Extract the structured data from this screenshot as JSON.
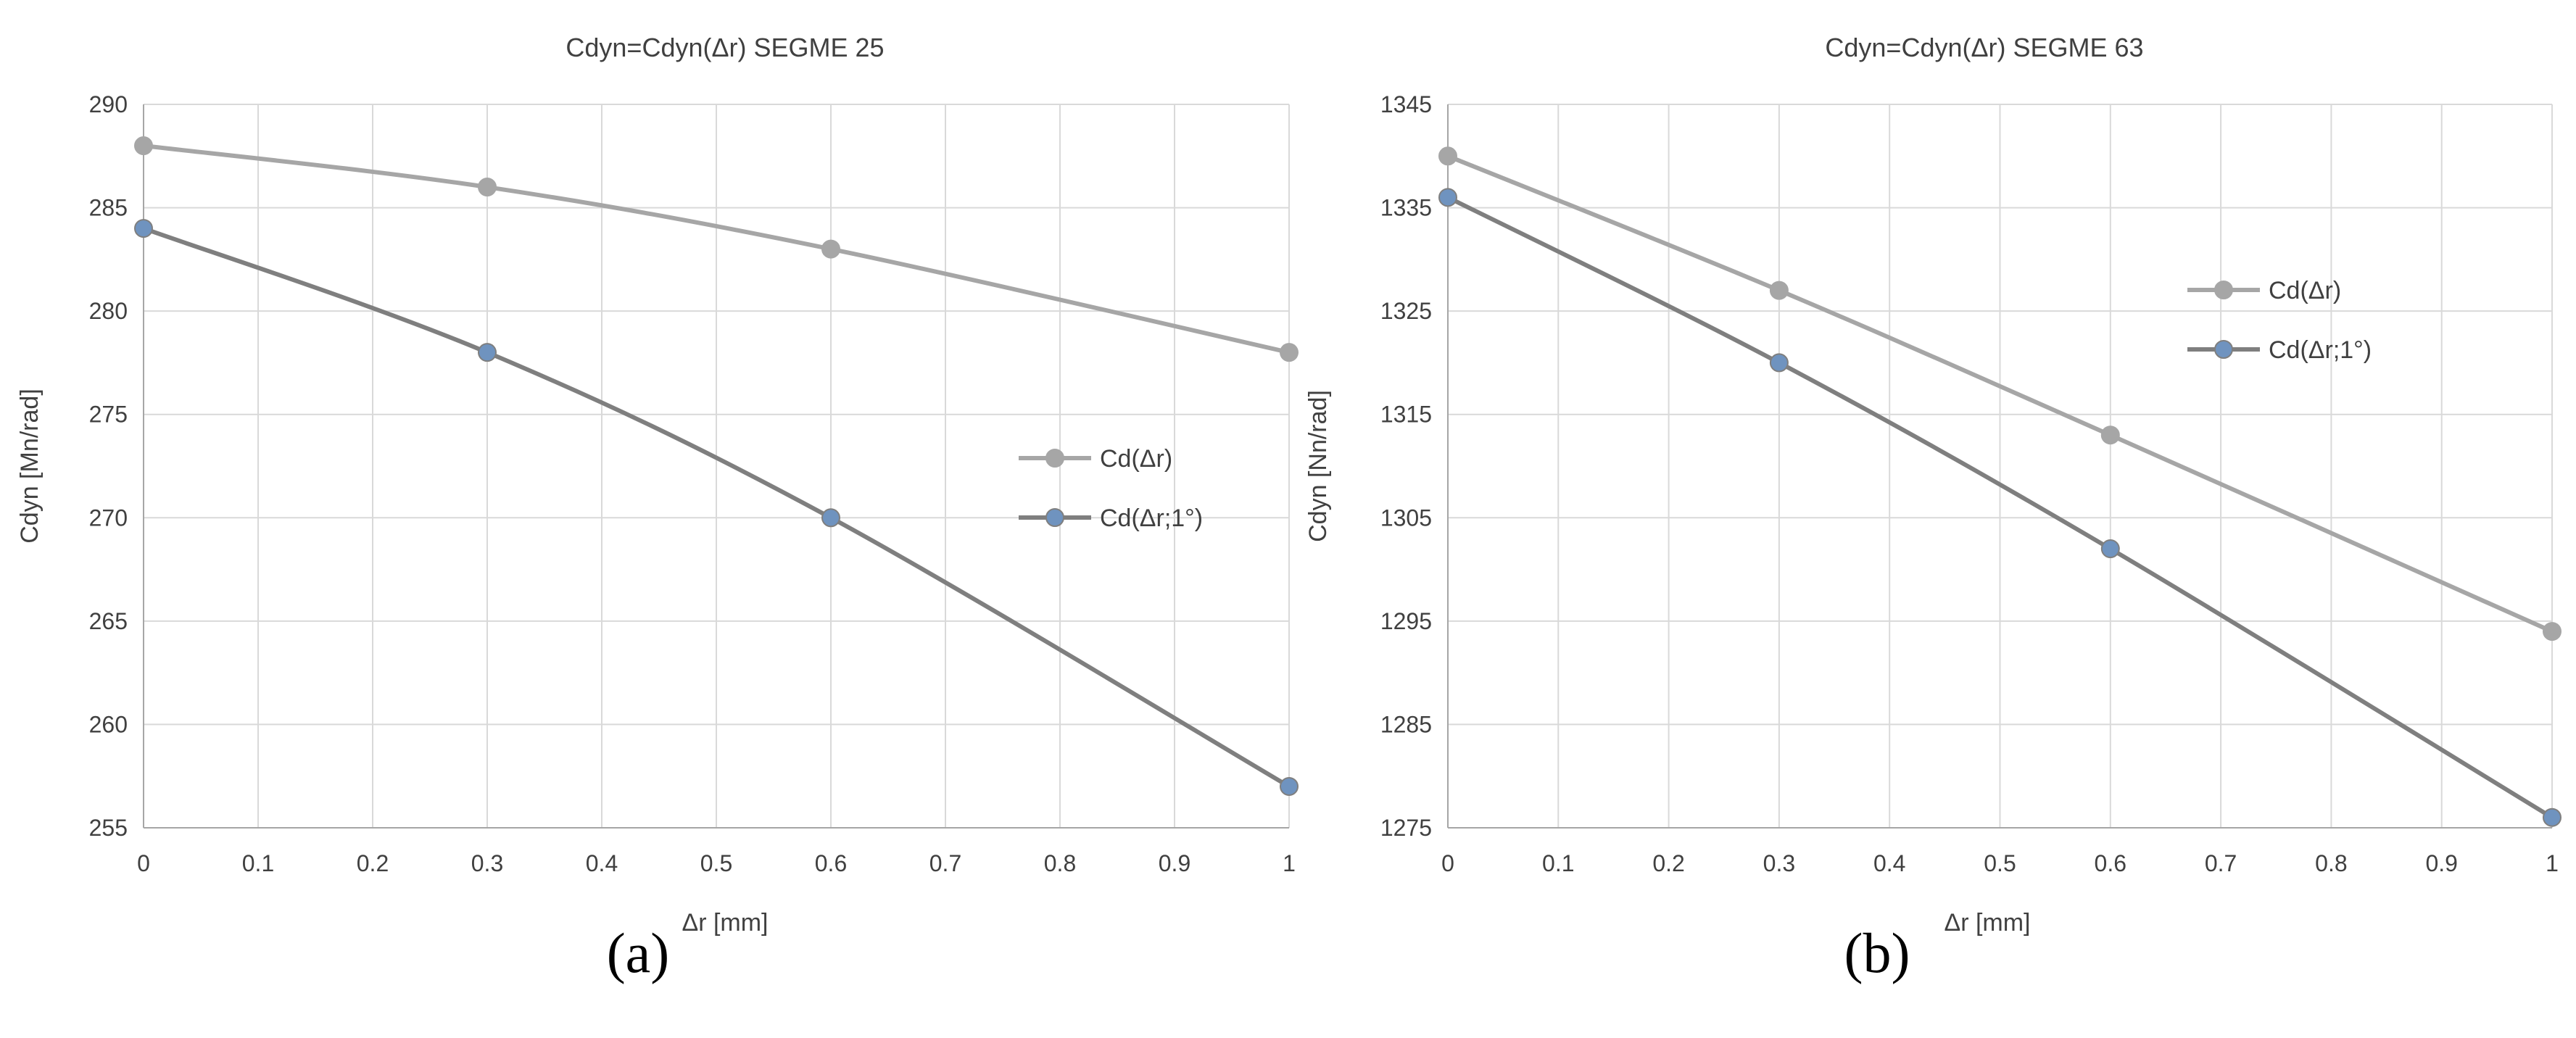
{
  "colors": {
    "series1_line": "#a6a6a6",
    "series1_marker": "#a6a6a6",
    "series2_line": "#7f7f7f",
    "series2_marker": "#6f93bf",
    "grid": "#d9d9d9",
    "axis": "#a6a6a6",
    "text": "#404040"
  },
  "chart_data": [
    {
      "panel_label": "(a)",
      "type": "line",
      "title": "Cdyn=Cdyn(Δr)  SEGME  25",
      "xlabel": "Δr [mm]",
      "ylabel": "Cdyn [Mn/rad]",
      "x": [
        0,
        0.3,
        0.6,
        1
      ],
      "xlim": [
        0,
        1
      ],
      "ylim": [
        255,
        290
      ],
      "xticks": [
        0,
        0.1,
        0.2,
        0.3,
        0.4,
        0.5,
        0.6,
        0.7,
        0.8,
        0.9,
        1
      ],
      "xtick_labels": [
        "0",
        "0.1",
        "0.2",
        "0.3",
        "0.4",
        "0.5",
        "0.6",
        "0.7",
        "0.8",
        "0.9",
        "1"
      ],
      "yticks": [
        255,
        260,
        265,
        270,
        275,
        280,
        285,
        290
      ],
      "ytick_labels": [
        "255",
        "260",
        "265",
        "270",
        "275",
        "280",
        "285",
        "290"
      ],
      "grid": true,
      "legend_position": "center-right",
      "series": [
        {
          "name": "Cd(Δr)",
          "values": [
            288,
            286,
            283,
            278
          ]
        },
        {
          "name": "Cd(Δr;1°)",
          "values": [
            284,
            278,
            270,
            257
          ]
        }
      ]
    },
    {
      "panel_label": "(b)",
      "type": "line",
      "title": "Cdyn=Cdyn(Δr)  SEGME 63",
      "xlabel": "Δr [mm]",
      "ylabel": "Cdyn [Nn/rad]",
      "x": [
        0,
        0.3,
        0.6,
        1
      ],
      "xlim": [
        0,
        1
      ],
      "ylim": [
        1275,
        1345
      ],
      "xticks": [
        0,
        0.1,
        0.2,
        0.3,
        0.4,
        0.5,
        0.6,
        0.7,
        0.8,
        0.9,
        1
      ],
      "xtick_labels": [
        "0",
        "0.1",
        "0.2",
        "0.3",
        "0.4",
        "0.5",
        "0.6",
        "0.7",
        "0.8",
        "0.9",
        "1"
      ],
      "yticks": [
        1275,
        1285,
        1295,
        1305,
        1315,
        1325,
        1335,
        1345
      ],
      "ytick_labels": [
        "1275",
        "1285",
        "1295",
        "1305",
        "1315",
        "1325",
        "1335",
        "1345"
      ],
      "grid": true,
      "legend_position": "upper-right",
      "series": [
        {
          "name": "Cd(Δr)",
          "values": [
            1340,
            1327,
            1313,
            1294
          ]
        },
        {
          "name": "Cd(Δr;1°)",
          "values": [
            1336,
            1320,
            1302,
            1276
          ]
        }
      ]
    }
  ]
}
